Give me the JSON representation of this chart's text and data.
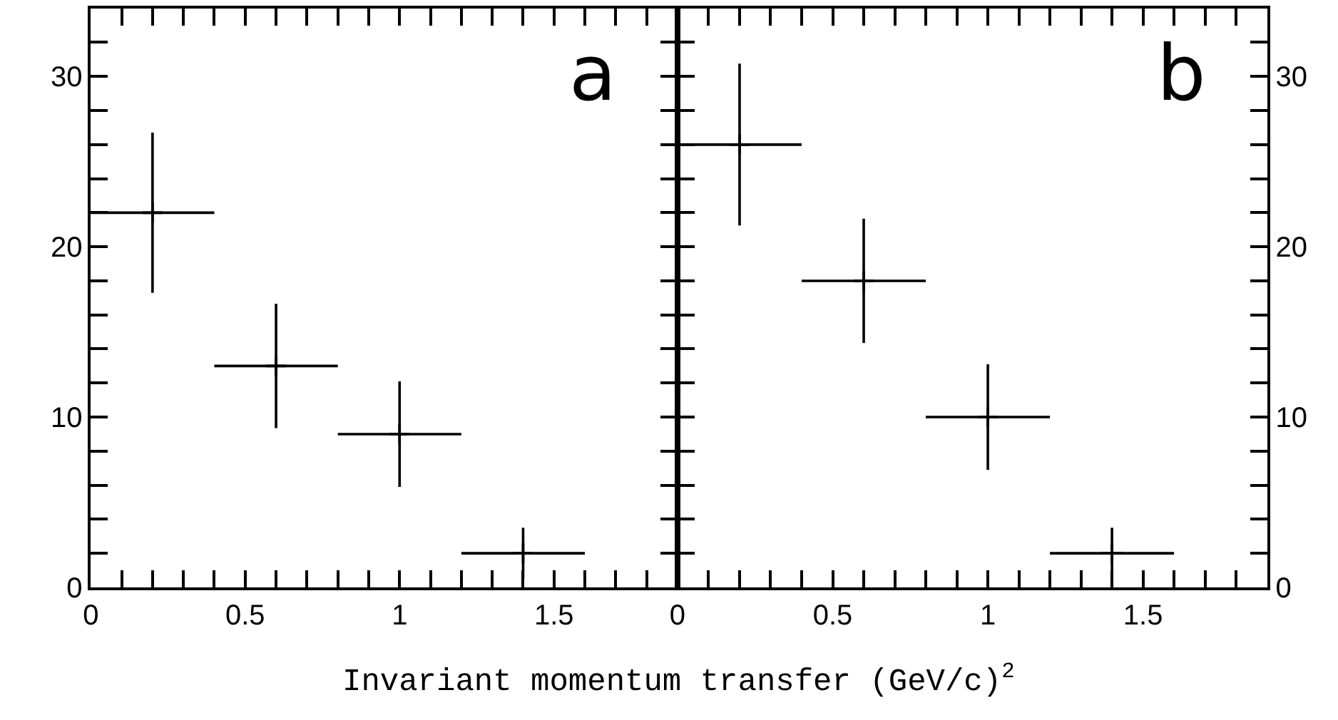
{
  "chart_data": [
    {
      "type": "scatter",
      "title": "a",
      "xlabel": "Invariant momentum transfer (GeV/c)$^{2}$",
      "marker": "cross",
      "x": [
        0.2,
        0.6,
        1.0,
        1.4
      ],
      "series": [
        {
          "color": "#000000",
          "values": [
            22.0,
            13.0,
            9.0,
            2.0
          ],
          "errors": [
            4.7,
            3.65,
            3.1,
            1.5
          ],
          "xerrors": [
            0.2,
            0.2,
            0.2,
            0.2
          ]
        }
      ],
      "xlim": [
        0,
        1.9
      ],
      "ylim": [
        0,
        34
      ],
      "xticks": [
        0,
        {
          "value": 0.1,
          "label": null
        },
        {
          "value": 0.2,
          "label": null
        },
        {
          "value": 0.3,
          "label": null
        },
        {
          "value": 0.4,
          "label": null
        },
        0.5,
        {
          "value": 0.6,
          "label": null
        },
        {
          "value": 0.7,
          "label": null
        },
        {
          "value": 0.8,
          "label": null
        },
        {
          "value": 0.9,
          "label": null
        },
        1,
        {
          "value": 1.1,
          "label": null
        },
        {
          "value": 1.2,
          "label": null
        },
        {
          "value": 1.3,
          "label": null
        },
        {
          "value": 1.4,
          "label": null
        },
        1.5,
        {
          "value": 1.6,
          "label": null
        },
        {
          "value": 1.7,
          "label": null
        },
        {
          "value": 1.8,
          "label": null
        }
      ],
      "yticks": [
        0,
        {
          "value": 2,
          "label": null
        },
        {
          "value": 4,
          "label": null
        },
        {
          "value": 6,
          "label": null
        },
        {
          "value": 8,
          "label": null
        },
        10,
        {
          "value": 12,
          "label": null
        },
        {
          "value": 14,
          "label": null
        },
        {
          "value": 16,
          "label": null
        },
        {
          "value": 18,
          "label": null
        },
        20,
        {
          "value": 22,
          "label": null
        },
        {
          "value": 24,
          "label": null
        },
        {
          "value": 26,
          "label": null
        },
        {
          "value": 28,
          "label": null
        },
        30,
        {
          "value": 32,
          "label": null
        }
      ]
    },
    {
      "type": "scatter",
      "title": "b",
      "marker": "cross",
      "x": [
        0.2,
        0.6,
        1.0,
        1.4
      ],
      "series": [
        {
          "color": "#000000",
          "values": [
            26.0,
            18.0,
            10.0,
            2.0
          ],
          "errors": [
            4.75,
            3.65,
            3.1,
            1.5
          ],
          "xerrors": [
            0.2,
            0.2,
            0.2,
            0.2
          ]
        }
      ],
      "xlim": [
        0,
        1.9
      ],
      "ylim": [
        0,
        34
      ],
      "xticks": [
        0,
        {
          "value": 0.1,
          "label": null
        },
        {
          "value": 0.2,
          "label": null
        },
        {
          "value": 0.3,
          "label": null
        },
        {
          "value": 0.4,
          "label": null
        },
        0.5,
        {
          "value": 0.6,
          "label": null
        },
        {
          "value": 0.7,
          "label": null
        },
        {
          "value": 0.8,
          "label": null
        },
        {
          "value": 0.9,
          "label": null
        },
        1,
        {
          "value": 1.1,
          "label": null
        },
        {
          "value": 1.2,
          "label": null
        },
        {
          "value": 1.3,
          "label": null
        },
        {
          "value": 1.4,
          "label": null
        },
        1.5,
        {
          "value": 1.6,
          "label": null
        },
        {
          "value": 1.7,
          "label": null
        },
        {
          "value": 1.8,
          "label": null
        }
      ],
      "yticks": [
        0,
        {
          "value": 2,
          "label": null
        },
        {
          "value": 4,
          "label": null
        },
        {
          "value": 6,
          "label": null
        },
        {
          "value": 8,
          "label": null
        },
        10,
        {
          "value": 12,
          "label": null
        },
        {
          "value": 14,
          "label": null
        },
        {
          "value": 16,
          "label": null
        },
        {
          "value": 18,
          "label": null
        },
        20,
        {
          "value": 22,
          "label": null
        },
        {
          "value": 24,
          "label": null
        },
        {
          "value": 26,
          "label": null
        },
        {
          "value": 28,
          "label": null
        },
        30,
        {
          "value": 32,
          "label": null
        }
      ]
    }
  ]
}
